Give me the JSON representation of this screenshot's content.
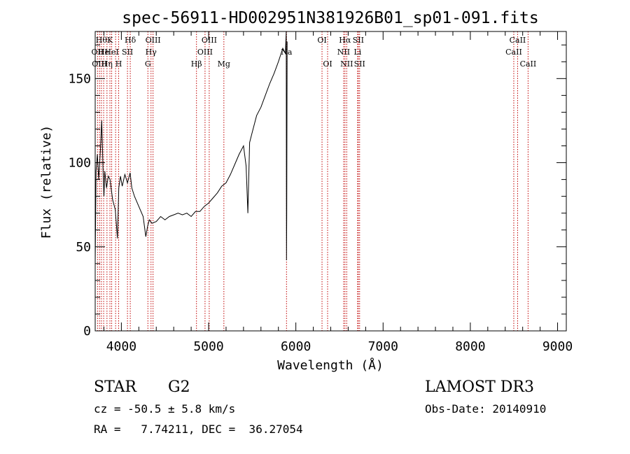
{
  "chart_data": {
    "type": "line",
    "title": "spec-56911-HD002951N381926B01_sp01-091.fits",
    "xlabel": "Wavelength (Å)",
    "ylabel": "Flux (relative)",
    "xlim": [
      3700,
      9100
    ],
    "ylim": [
      0,
      178
    ],
    "x_ticks": [
      4000,
      5000,
      6000,
      7000,
      8000,
      9000
    ],
    "x_tick_labels": [
      "4000",
      "5000",
      "6000",
      "7000",
      "8000",
      "9000"
    ],
    "y_ticks": [
      0,
      50,
      100,
      150
    ],
    "y_tick_labels": [
      "0",
      "50",
      "100",
      "150"
    ],
    "grid": false,
    "series": [
      {
        "x": [
          3700,
          3710,
          3725,
          3740,
          3760,
          3775,
          3790,
          3800,
          3810,
          3830,
          3850,
          3870,
          3900,
          3930,
          3955,
          3960,
          3970,
          3990,
          4010,
          4040,
          4070,
          4100,
          4120,
          4150,
          4200,
          4250,
          4280,
          4300,
          4320,
          4350,
          4400,
          4450,
          4500,
          4550,
          4600,
          4650,
          4700,
          4750,
          4800,
          4850,
          4900,
          4950,
          5000,
          5050,
          5100,
          5150,
          5200,
          5250,
          5300,
          5350,
          5400,
          5430,
          5450,
          5470,
          5500,
          5550,
          5600,
          5650,
          5700,
          5750,
          5800,
          5850,
          5880,
          5890,
          5893,
          5895,
          5900
        ],
        "y": [
          40,
          95,
          105,
          90,
          108,
          125,
          96,
          80,
          95,
          85,
          92,
          90,
          78,
          72,
          55,
          65,
          85,
          92,
          86,
          93,
          88,
          94,
          85,
          80,
          74,
          68,
          56,
          62,
          66,
          64,
          65,
          68,
          66,
          68,
          69,
          70,
          69,
          70,
          68,
          71,
          71,
          74,
          76,
          79,
          82,
          86,
          88,
          93,
          99,
          105,
          110,
          98,
          70,
          112,
          118,
          128,
          133,
          140,
          147,
          153,
          160,
          168,
          165,
          178,
          42,
          68,
          172
        ]
      }
    ],
    "lines": [
      {
        "x": 3727,
        "label": "OII",
        "row": 1
      },
      {
        "x": 3750,
        "label": "OIII",
        "row": 2
      },
      {
        "x": 3771,
        "label": "Hθ",
        "row": 0
      },
      {
        "x": 3797,
        "label": "He",
        "row": 1
      },
      {
        "x": 3835,
        "label": "Hη",
        "row": 2
      },
      {
        "x": 3869,
        "label": "K",
        "row": 0
      },
      {
        "x": 3889,
        "label": "HeI",
        "row": 1
      },
      {
        "x": 3934,
        "label": "",
        "row": 0
      },
      {
        "x": 3969,
        "label": "H",
        "row": 2
      },
      {
        "x": 4070,
        "label": "SII",
        "row": 1
      },
      {
        "x": 4102,
        "label": "Hδ",
        "row": 0
      },
      {
        "x": 4304,
        "label": "G",
        "row": 2
      },
      {
        "x": 4340,
        "label": "Hγ",
        "row": 1
      },
      {
        "x": 4363,
        "label": "OIII",
        "row": 0
      },
      {
        "x": 4861,
        "label": "Hβ",
        "row": 2
      },
      {
        "x": 4959,
        "label": "OIII",
        "row": 1
      },
      {
        "x": 5007,
        "label": "OIII",
        "row": 0
      },
      {
        "x": 5175,
        "label": "Mg",
        "row": 2
      },
      {
        "x": 5893,
        "label": "Na",
        "row": 1
      },
      {
        "x": 6300,
        "label": "OI",
        "row": 0
      },
      {
        "x": 6364,
        "label": "OI",
        "row": 2
      },
      {
        "x": 6548,
        "label": "NII",
        "row": 1
      },
      {
        "x": 6563,
        "label": "Hα",
        "row": 0
      },
      {
        "x": 6583,
        "label": "NII",
        "row": 2
      },
      {
        "x": 6708,
        "label": "Li",
        "row": 1
      },
      {
        "x": 6716,
        "label": "SII",
        "row": 0
      },
      {
        "x": 6731,
        "label": "SII",
        "row": 2
      },
      {
        "x": 8498,
        "label": "CaII",
        "row": 1
      },
      {
        "x": 8542,
        "label": "CaII",
        "row": 0
      },
      {
        "x": 8662,
        "label": "CaII",
        "row": 2
      }
    ]
  },
  "info": {
    "class": "STAR",
    "subclass": "G2",
    "survey": "LAMOST DR3",
    "cz": "cz = -50.5 ± 5.8 km/s",
    "obs_date": "Obs-Date: 20140910",
    "radec": "RA =   7.74211, DEC =  36.27054"
  }
}
